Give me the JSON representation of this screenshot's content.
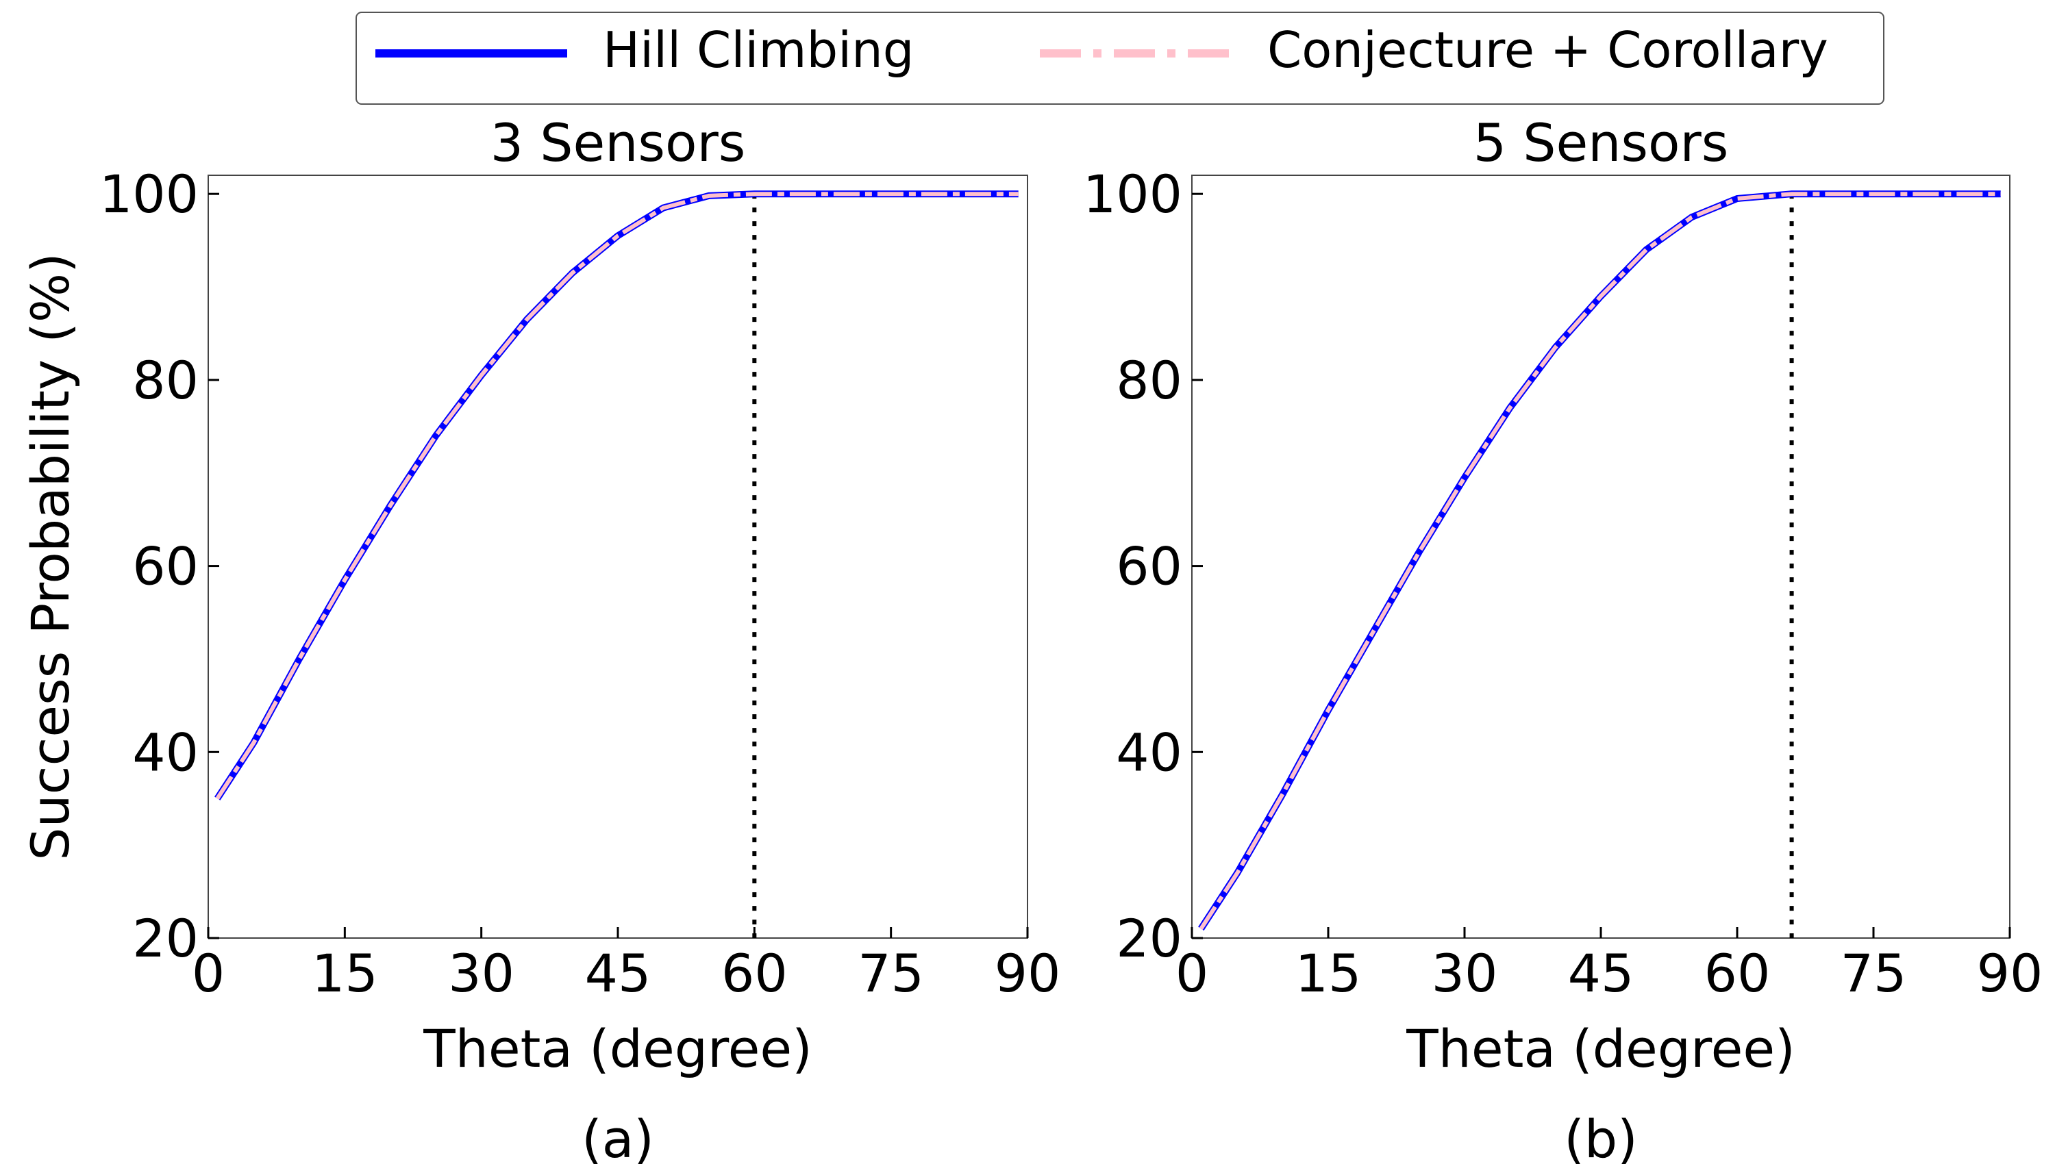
{
  "legend": {
    "placement": "top-center",
    "entries": [
      {
        "label": "Hill Climbing",
        "color": "#0000ff",
        "style": "solid"
      },
      {
        "label": "Conjecture + Corollary",
        "color": "#ffc0cb",
        "style": "dash-dot"
      }
    ]
  },
  "panels": [
    {
      "title": "3 Sensors",
      "caption": "(a)"
    },
    {
      "title": "5 Sensors",
      "caption": "(b)"
    }
  ],
  "chart_data": [
    {
      "type": "line",
      "title": "3 Sensors",
      "caption": "(a)",
      "xlabel": "Theta (degree)",
      "ylabel": "Success Probability (%)",
      "xlim": [
        0,
        90
      ],
      "ylim": [
        20,
        102
      ],
      "xticks": [
        0,
        15,
        30,
        45,
        60,
        75,
        90
      ],
      "yticks": [
        20,
        40,
        60,
        80,
        100
      ],
      "grid": false,
      "vline_x": 60,
      "x": [
        1,
        5,
        10,
        15,
        20,
        25,
        30,
        35,
        40,
        45,
        50,
        55,
        60,
        65,
        70,
        75,
        80,
        85,
        89
      ],
      "series": [
        {
          "name": "Hill Climbing",
          "color": "#0000ff",
          "values": [
            35,
            41,
            50,
            58.5,
            66.5,
            74,
            80.5,
            86.5,
            91.5,
            95.5,
            98.5,
            99.8,
            100,
            100,
            100,
            100,
            100,
            100,
            100
          ]
        },
        {
          "name": "Conjecture + Corollary",
          "color": "#ffc0cb",
          "values": [
            35,
            41,
            50,
            58.5,
            66.5,
            74,
            80.5,
            86.5,
            91.5,
            95.5,
            98.5,
            99.8,
            100,
            100,
            100,
            100,
            100,
            100,
            100
          ]
        }
      ]
    },
    {
      "type": "line",
      "title": "5 Sensors",
      "caption": "(b)",
      "xlabel": "Theta (degree)",
      "ylabel": "",
      "xlim": [
        0,
        90
      ],
      "ylim": [
        20,
        102
      ],
      "xticks": [
        0,
        15,
        30,
        45,
        60,
        75,
        90
      ],
      "yticks": [
        20,
        40,
        60,
        80,
        100
      ],
      "grid": false,
      "vline_x": 66,
      "x": [
        1,
        5,
        10,
        15,
        20,
        25,
        30,
        35,
        40,
        45,
        50,
        55,
        60,
        66,
        70,
        75,
        80,
        85,
        89
      ],
      "series": [
        {
          "name": "Hill Climbing",
          "color": "#0000ff",
          "values": [
            21,
            27,
            35.5,
            44.5,
            53,
            61.5,
            69.5,
            77,
            83.5,
            89,
            94,
            97.5,
            99.5,
            100,
            100,
            100,
            100,
            100,
            100
          ]
        },
        {
          "name": "Conjecture + Corollary",
          "color": "#ffc0cb",
          "values": [
            21,
            27,
            35.5,
            44.5,
            53,
            61.5,
            69.5,
            77,
            83.5,
            89,
            94,
            97.5,
            99.5,
            100,
            100,
            100,
            100,
            100,
            100
          ]
        }
      ]
    }
  ]
}
